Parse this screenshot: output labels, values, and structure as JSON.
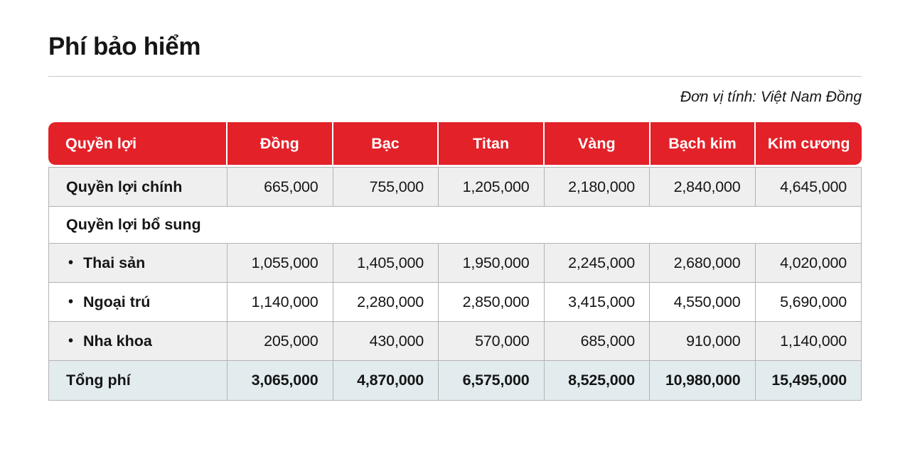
{
  "page": {
    "title": "Phí bảo hiểm",
    "unit_note": "Đơn vị tính: Việt Nam Đồng"
  },
  "colors": {
    "header_bg": "#e32129",
    "header_text": "#ffffff",
    "shade_row_bg": "#f0efef",
    "plain_row_bg": "#ffffff",
    "total_row_bg": "#e2ecef",
    "table_border": "#b3b3b3",
    "text": "#161616",
    "title_rule": "#c9c9c9"
  },
  "table": {
    "bullet_glyph": "•",
    "columns": [
      "Quyền lợi",
      "Đồng",
      "Bạc",
      "Titan",
      "Vàng",
      "Bạch kim",
      "Kim cương"
    ],
    "rows": [
      {
        "label": "Quyền lợi chính",
        "type": "main",
        "variant": "shade",
        "bullet": false,
        "values": [
          "665,000",
          "755,000",
          "1,205,000",
          "2,180,000",
          "2,840,000",
          "4,645,000"
        ]
      },
      {
        "label": "Quyền lợi bổ sung",
        "type": "section",
        "variant": "plain",
        "bullet": false,
        "values": []
      },
      {
        "label": "Thai sản",
        "type": "item",
        "variant": "shade",
        "bullet": true,
        "values": [
          "1,055,000",
          "1,405,000",
          "1,950,000",
          "2,245,000",
          "2,680,000",
          "4,020,000"
        ]
      },
      {
        "label": "Ngoại trú",
        "type": "item",
        "variant": "plain",
        "bullet": true,
        "values": [
          "1,140,000",
          "2,280,000",
          "2,850,000",
          "3,415,000",
          "4,550,000",
          "5,690,000"
        ]
      },
      {
        "label": "Nha khoa",
        "type": "item",
        "variant": "shade",
        "bullet": true,
        "values": [
          "205,000",
          "430,000",
          "570,000",
          "685,000",
          "910,000",
          "1,140,000"
        ]
      },
      {
        "label": "Tổng phí",
        "type": "total",
        "variant": "total",
        "bullet": false,
        "values": [
          "3,065,000",
          "4,870,000",
          "6,575,000",
          "8,525,000",
          "10,980,000",
          "15,495,000"
        ]
      }
    ]
  }
}
